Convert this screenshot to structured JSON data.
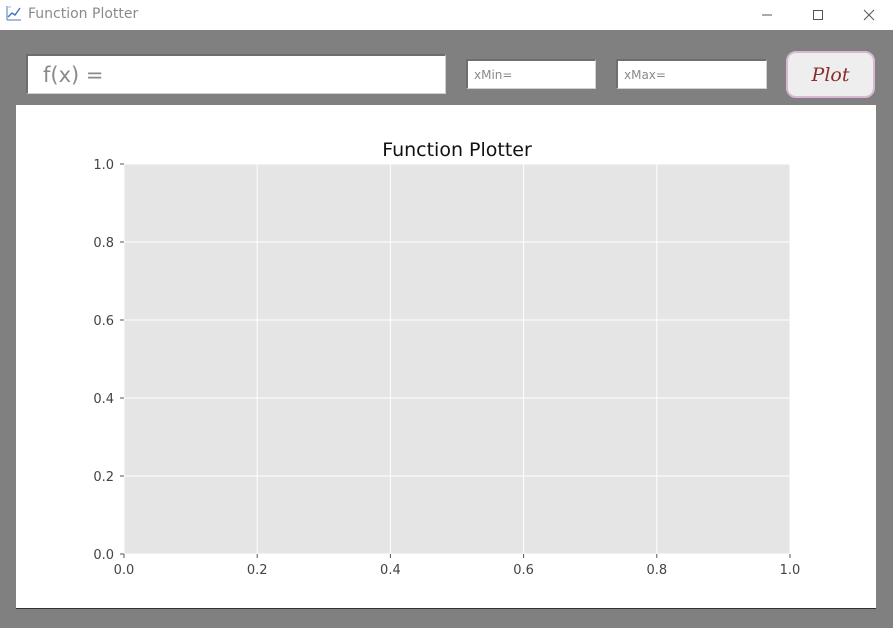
{
  "window": {
    "title": "Function Plotter",
    "icon": "chart-line-icon"
  },
  "controls": {
    "function_placeholder": "f(x) =",
    "xmin_placeholder": "xMin=",
    "xmax_placeholder": "xMax=",
    "plot_label": "Plot"
  },
  "colors": {
    "window_bg": "#808080",
    "axes_bg": "#e5e5e5",
    "grid": "#ffffff",
    "plot_button_text": "#8a2d2d",
    "plot_button_border": "#d7b7d5"
  },
  "chart_data": {
    "type": "line",
    "title": "Function Plotter",
    "xlabel": "",
    "ylabel": "",
    "xlim": [
      0.0,
      1.0
    ],
    "ylim": [
      0.0,
      1.0
    ],
    "xticks": [
      "0.0",
      "0.2",
      "0.4",
      "0.6",
      "0.8",
      "1.0"
    ],
    "yticks": [
      "0.0",
      "0.2",
      "0.4",
      "0.6",
      "0.8",
      "1.0"
    ],
    "grid": true,
    "series": []
  }
}
